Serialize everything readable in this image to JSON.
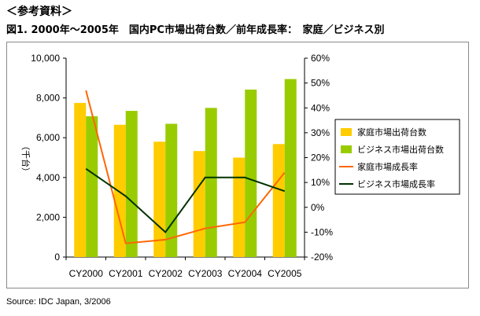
{
  "header": "＜参考資料＞",
  "title": "図1. 2000年～2005年　国内PC市場出荷台数／前年成長率：　家庭／ビジネス別",
  "source": "Source: IDC Japan, 3/2006",
  "colors": {
    "home_bar": "#FFCC00",
    "business_bar": "#99CC00",
    "home_line": "#FF6600",
    "business_line": "#003300"
  },
  "chart_data": {
    "type": "bar",
    "categories": [
      "CY2000",
      "CY2001",
      "CY2002",
      "CY2003",
      "CY2004",
      "CY2005"
    ],
    "ylabel": "（千台）",
    "ylim": [
      0,
      10000
    ],
    "yticks": [
      "0",
      "2,000",
      "4,000",
      "6,000",
      "8,000",
      "10,000"
    ],
    "y2lim": [
      -20,
      60
    ],
    "y2ticks": [
      "-20%",
      "-10%",
      "0%",
      "10%",
      "20%",
      "30%",
      "40%",
      "50%",
      "60%"
    ],
    "legend_position": "right",
    "series": [
      {
        "name": "家庭市場出荷台数",
        "kind": "bar",
        "axis": "left",
        "values": [
          7750,
          6650,
          5800,
          5330,
          5000,
          5680
        ]
      },
      {
        "name": "ビジネス市場出荷台数",
        "kind": "bar",
        "axis": "left",
        "values": [
          7080,
          7350,
          6700,
          7500,
          8420,
          8950
        ]
      },
      {
        "name": "家庭市場成長率",
        "kind": "line",
        "axis": "right",
        "values": [
          47,
          -14.5,
          -13,
          -8.5,
          -6,
          14
        ]
      },
      {
        "name": "ビジネス市場成長率",
        "kind": "line",
        "axis": "right",
        "values": [
          15.5,
          4.5,
          -10,
          12,
          12,
          6.5
        ]
      }
    ]
  }
}
